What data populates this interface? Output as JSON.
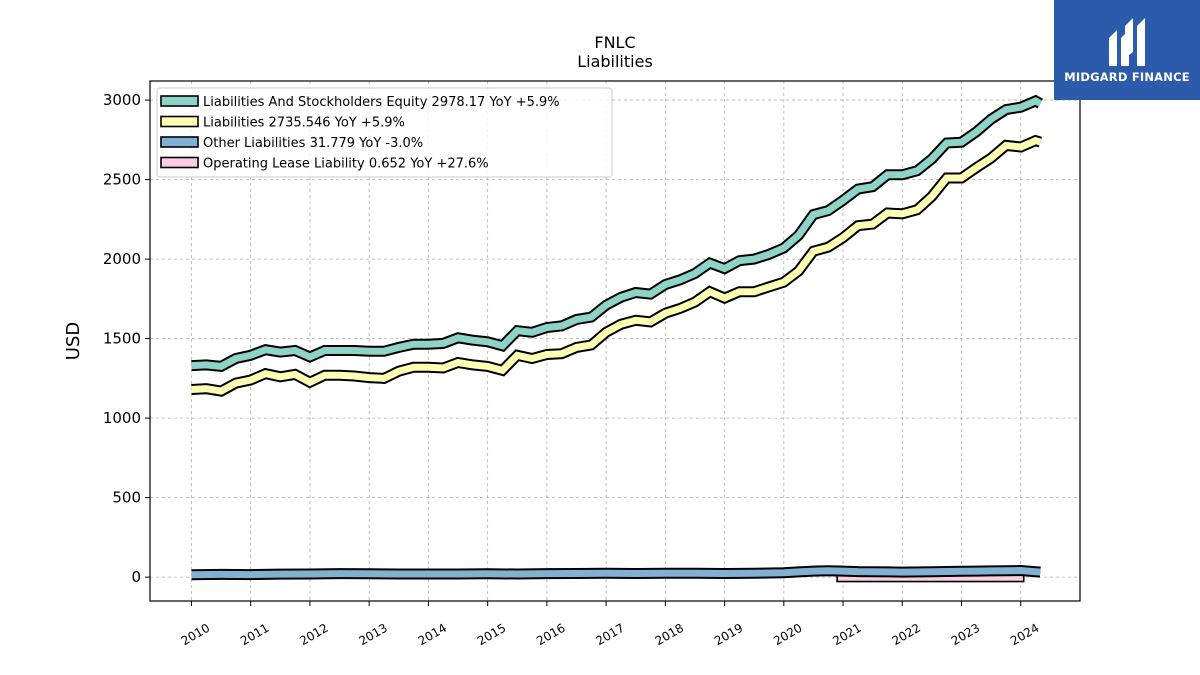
{
  "chart_data": {
    "type": "line",
    "title": "FNLC",
    "subtitle": "Liabilities",
    "ylabel": "USD",
    "xlabel": "",
    "ylim": [
      -150,
      3120
    ],
    "xlim": [
      2009.3,
      2025.0
    ],
    "yticks": [
      0,
      500,
      1000,
      1500,
      2000,
      2500,
      3000
    ],
    "xticks": [
      "2010",
      "2011",
      "2012",
      "2013",
      "2014",
      "2015",
      "2016",
      "2017",
      "2018",
      "2019",
      "2020",
      "2021",
      "2022",
      "2023",
      "2024"
    ],
    "grid": true,
    "legend_position": "top-left",
    "series": [
      {
        "name": "Liabilities And Stockholders Equity",
        "legend": "Liabilities And Stockholders Equity  2978.17 YoY +5.9%",
        "color": "#8dd3c7",
        "x": [
          2010.0,
          2010.25,
          2010.5,
          2010.75,
          2011.0,
          2011.25,
          2011.5,
          2011.75,
          2012.0,
          2012.25,
          2012.5,
          2012.75,
          2013.0,
          2013.25,
          2013.5,
          2013.75,
          2014.0,
          2014.25,
          2014.5,
          2014.75,
          2015.0,
          2015.25,
          2015.5,
          2015.75,
          2016.0,
          2016.25,
          2016.5,
          2016.75,
          2017.0,
          2017.25,
          2017.5,
          2017.75,
          2018.0,
          2018.25,
          2018.5,
          2018.75,
          2019.0,
          2019.25,
          2019.5,
          2019.75,
          2020.0,
          2020.25,
          2020.5,
          2020.75,
          2021.0,
          2021.25,
          2021.5,
          2021.75,
          2022.0,
          2022.25,
          2022.5,
          2022.75,
          2023.0,
          2023.25,
          2023.5,
          2023.75,
          2024.0,
          2024.25,
          2024.33
        ],
        "values": [
          1330,
          1335,
          1325,
          1375,
          1395,
          1430,
          1415,
          1425,
          1385,
          1425,
          1425,
          1425,
          1420,
          1420,
          1445,
          1465,
          1465,
          1470,
          1505,
          1490,
          1480,
          1455,
          1550,
          1540,
          1570,
          1580,
          1620,
          1635,
          1710,
          1760,
          1790,
          1780,
          1840,
          1870,
          1910,
          1975,
          1940,
          1990,
          2000,
          2030,
          2070,
          2150,
          2280,
          2305,
          2370,
          2440,
          2455,
          2530,
          2530,
          2555,
          2630,
          2730,
          2735,
          2800,
          2880,
          2940,
          2955,
          2995,
          2978.17
        ]
      },
      {
        "name": "Liabilities",
        "legend": "Liabilities  2735.546 YoY +5.9%",
        "color": "#ffffb3",
        "x": [
          2010.0,
          2010.25,
          2010.5,
          2010.75,
          2011.0,
          2011.25,
          2011.5,
          2011.75,
          2012.0,
          2012.25,
          2012.5,
          2012.75,
          2013.0,
          2013.25,
          2013.5,
          2013.75,
          2014.0,
          2014.25,
          2014.5,
          2014.75,
          2015.0,
          2015.25,
          2015.5,
          2015.75,
          2016.0,
          2016.25,
          2016.5,
          2016.75,
          2017.0,
          2017.25,
          2017.5,
          2017.75,
          2018.0,
          2018.25,
          2018.5,
          2018.75,
          2019.0,
          2019.25,
          2019.5,
          2019.75,
          2020.0,
          2020.25,
          2020.5,
          2020.75,
          2021.0,
          2021.25,
          2021.5,
          2021.75,
          2022.0,
          2022.25,
          2022.5,
          2022.75,
          2023.0,
          2023.25,
          2023.5,
          2023.75,
          2024.0,
          2024.25,
          2024.33
        ],
        "values": [
          1180,
          1185,
          1170,
          1220,
          1240,
          1280,
          1260,
          1275,
          1225,
          1270,
          1270,
          1265,
          1255,
          1250,
          1295,
          1320,
          1320,
          1315,
          1350,
          1335,
          1325,
          1300,
          1395,
          1375,
          1400,
          1405,
          1445,
          1460,
          1540,
          1590,
          1615,
          1605,
          1660,
          1690,
          1730,
          1795,
          1755,
          1795,
          1795,
          1825,
          1855,
          1925,
          2050,
          2075,
          2135,
          2210,
          2220,
          2290,
          2285,
          2310,
          2395,
          2510,
          2510,
          2575,
          2635,
          2715,
          2705,
          2745,
          2735.546
        ]
      },
      {
        "name": "Other Liabilities",
        "legend": "Other Liabilities  31.779 YoY -3.0%",
        "color": "#80b1d3",
        "x": [
          2010.0,
          2010.5,
          2011.0,
          2011.5,
          2012.0,
          2012.5,
          2013.0,
          2013.5,
          2014.0,
          2014.5,
          2015.0,
          2015.5,
          2016.0,
          2016.5,
          2017.0,
          2017.5,
          2018.0,
          2018.5,
          2019.0,
          2019.5,
          2020.0,
          2020.25,
          2020.5,
          2020.75,
          2021.0,
          2021.25,
          2021.5,
          2021.75,
          2022.0,
          2022.5,
          2023.0,
          2023.25,
          2023.5,
          2023.75,
          2024.0,
          2024.33
        ],
        "values": [
          15,
          17,
          16,
          19,
          20,
          22,
          21,
          20,
          20,
          20,
          21,
          20,
          22,
          23,
          24,
          23,
          25,
          24,
          23,
          24,
          28,
          33,
          38,
          40,
          38,
          35,
          34,
          33,
          32,
          34,
          37,
          38,
          39,
          40,
          42,
          31.779
        ]
      },
      {
        "name": "Operating Lease Liability",
        "legend": "Operating Lease Liability  0.652 YoY +27.6%",
        "color": "#fccde5",
        "x": [
          2020.9,
          2021.5,
          2022.0,
          2022.5,
          2023.0,
          2023.5,
          2024.05
        ],
        "values": [
          0.5,
          0.55,
          0.6,
          0.55,
          0.5,
          0.55,
          0.652
        ]
      }
    ]
  },
  "logo": {
    "text": "MIDGARD FINANCE",
    "color": "#2c5bab"
  }
}
